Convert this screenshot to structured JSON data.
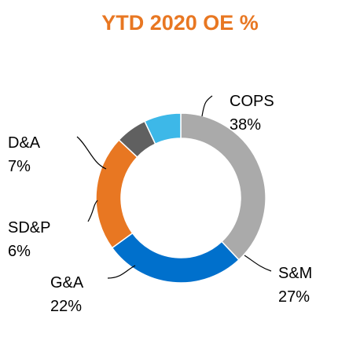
{
  "chart_data": {
    "type": "pie",
    "variant": "donut",
    "title": "YTD 2020 OE %",
    "title_color": "#E87722",
    "slices": [
      {
        "label": "COPS",
        "value": 38,
        "value_label": "38%",
        "color": "#AAAAAA"
      },
      {
        "label": "S&M",
        "value": 27,
        "value_label": "27%",
        "color": "#0070CC"
      },
      {
        "label": "G&A",
        "value": 22,
        "value_label": "22%",
        "color": "#E87722"
      },
      {
        "label": "SD&P",
        "value": 6,
        "value_label": "6%",
        "color": "#606060"
      },
      {
        "label": "D&A",
        "value": 7,
        "value_label": "7%",
        "color": "#3DB8E8"
      }
    ]
  }
}
